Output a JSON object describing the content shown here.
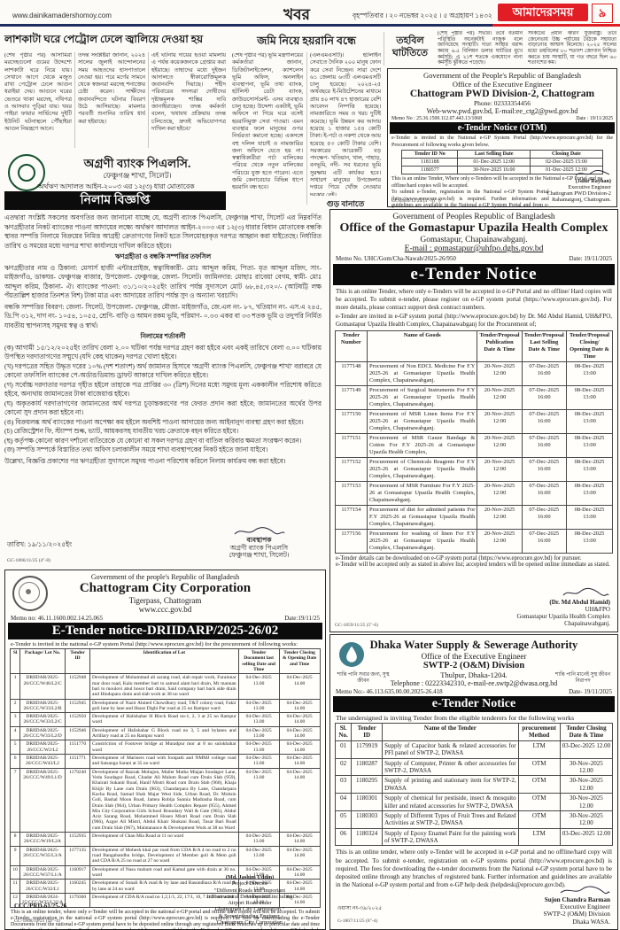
{
  "masthead": {
    "website": "www.dainikamadershomoy.com",
    "section": "খবর",
    "date_line": "বৃহস্পতিবার । ২০ নভেম্বর ২০২৫ । ৫ অগ্রহায়ণ ১৪৩২",
    "paper_name": "আমাদেরসময়",
    "page_number": "৯",
    "brand_red": "#e11d25",
    "rule_navy": "#1c2d5e"
  },
  "article_fire": {
    "headline": "লাশকাটা ঘরে পেট্রোল ঢেলে জ্বালিয়ে দেওয়া হয়",
    "col1": "(শেষ পৃষ্ঠার পর) আসামিরা মরদেহগুলো গুমের উদ্দেশ্যে লাশকাটা ঘরে নিয়ে যায়। সেখানে আগে থেকে মজুত রাখা পেট্রোল ঢেলে আগুন ধরাইয়া দেয়। আগুনে ঘরের ভেতরে থাকা মরদেহ, নথিপত্র ও আসবাব পুড়িয়া যায়। খবর পাইয়া ফায়ার সার্ভিসের দুইটি ইউনিট ঘটনাস্থলে পৌঁছাইয়া আগুন নিয়ন্ত্রণে আনে।",
    "col2": "তদন্ত সংশ্লিষ্টরা জানান, ২০২৪ সালের জুলাই আন্দোলনের সময় আহতদের হাসপাতালে নেওয়া হয়। পরে মর্গের সামনে থেকে স্বজনরা মরদেহ শনাক্তের চেষ্টা করেন। সাক্ষীদের জবানবন্দিতে ঘটনার বিবরণ উঠে আসিয়াছে। মামলার পরবর্তী শুনানির তারিখ ধার্য করা হইয়াছে।",
    "col3": "এই ঘটনায় দায়ের হওয়া মামলায় এ পর্যন্ত কয়েকজনকে গ্রেপ্তার করা হইয়াছে। তাহাদের মধ্যে দুইজন আদালতে স্বীকারোক্তিমূলক জবানবন্দি দিয়াছে। শহীদ পরিবারের সদস্যরা দোষীদের দৃষ্টান্তমূলক শাস্তির দাবি জানাইয়াছেন। তদন্ত কর্মকর্তা বলেন, 'যথাযথ প্রক্রিয়ায় তদন্ত চলিতেছে, দ্রুতই অভিযোগপত্র দাখিল করা হইবে।'"
  },
  "article_land": {
    "headline": "জমি নিয়ে হয়রানি বন্ধে",
    "col1": "(শেষ পৃষ্ঠার পর) ভূমি মন্ত্রণালয়ের কর্মকর্তারা জানান, ডিজিটালাইজেশন, ক্যাশলেস ভূমি অফিস, অনলাইন ব্যবস্থাপনা, ভূমি তথ্য ব্যাংক, হটলিস্ট ডেটা ব্যাংক, ক্রাউডসোর্সমেন্ট- এসব ব্যবস্থাও চালু হচ্ছে। উদ্দেশ্য একটাই, ভূমি অফিসে না গিয়ে ঘরে বসেই হয়রানিমুক্ত সেবা পাওয়া। এমন ব্যবস্থার ফলে মানুষের ওপর নির্ভরতা কমানো হচ্ছে। একসঙ্গে বহু দলিল যাচাই ও নামজারির জন্য অফিসে যেতে হয় না। স্বত্বাধিকারীরা পর্চা মালিকের পরিচয় থেকে নতুন মালিকের পরিচয়ে যুক্ত হতে পারেন। এতে জমি কেনাবেচার বিভিন্ন ধাপে হয়রানি বন্ধ হবে।",
    "col2": "(এলএমএসটি)। হটলাইন সেবাতে দৈনিক ২০০ মানুষ ফোন করে সেবা নিচ্ছেন। সারা দেশে ৬১ জেলায় ৬৩টি এলএমএসটি চালু হয়েছে। ২০২৪-২৫ অর্থবছরে ই-মিউটেশনের মাধ্যমে প্রায় ৪০ লাখ ৪৭ হাজারের বেশি আবেদন নিষ্পত্তি হয়েছে। নামজারিতে সময় ও খরচ দুটিই কমেছে। ভূমি উন্নয়ন কর আদায় হয়েছে ১ হাজার ১৫৪ কোটি টাকা। ই-পর্চা ও নকশা থেকে আয় হয়েছে ৫৩ কোটি টাকার বেশি। সরকারের আরেকটি বড় পদক্ষেপ- খতিয়ান, খাল, পাহাড়, বনভূমি, নদী- সব ধরনের ভূমি সুরক্ষায় এটি কার্যকর হবে। সাধারণ মানুষের উপজেলার দপ্তরে গিয়ে খোঁজ নেওয়ার দরকার নেই।",
    "subhead": "গুড় বানাতে"
  },
  "article_fund": {
    "headline_line1": "তহবিল",
    "headline_line2": "ঘাটতিতে",
    "col1": "(শেষ পৃষ্ঠার পর) সভার। তবে বর্তমান পরিস্থিতি অনেকটাই নাজুক বলে জানিয়েছে সংস্থাটি। দাতা সংস্থার বরাদ্দ কমায় ৬.৫ বিলিয়ন ডলার ঘাটতির মুখে কর্মসূচি; এ ২১শ শতকে একযোগে নানা কর্মসূচি ঝুঁকিতে পড়েছে।",
    "col2": "সংকটের প্রধান কারণ যুক্তরাষ্ট্র। তবে জেনেভায় উচ্চ পর্যায়ের বৈঠকে সহায়তা বাড়ানোর আশ্বাস মিলেছে। ২০২৫ সালের মধ্যে তহবিলের ৮০ শতাংশ জোগান নিশ্চিত করতে চায় সংস্থাটি, যা গত বছরে ছিল ৬০ শতাংশের কম।"
  },
  "agrani": {
    "bank_name": "অগ্রণী ব্যাংক পিএলসি.",
    "branch": "ফেঞ্চুগঞ্জ শাখা, সিলেট।",
    "law_line": "অর্থঋণ আদালত আইন-২০০৩ এর ১২(৩) ধারা মোতাবেক",
    "banner": "নিলাম বিজ্ঞপ্তি",
    "p1": "এতদ্বারা সংশ্লিষ্ট সকলের অবগতির জন্য জানানো যাচ্ছে যে, অগ্রণী ব্যাংক পিএলসি, ফেঞ্চুগঞ্জ শাখা, সিলেট এর নিম্নবর্ণিত ঋণগ্রহীতার নিকট ব্যাংকের পাওনা আদায়ের লক্ষ্যে অর্থঋণ আদালত আইন-২০০৩ এর ১২(৩) ধারার বিধান মোতাবেক বন্ধকি স্থাবর সম্পত্তি নিলামে বিক্রয়ের নিমিত্ত আগ্রহী ক্রেতাগণের নিকট হতে সিলমোহরকৃত দরপত্র আহ্বান করা যাইতেছে। নির্ধারিত তারিখ ও সময়ের মধ্যে দরপত্র শাখা কার্যালয়ে দাখিল করিতে হইবে।",
    "schedule_title": "ঋণগ্রহীতা ও বন্ধকি সম্পত্তির তফসিল",
    "p2": "ঋণগ্রহীতার নাম ও ঠিকানা: মেসার্স হাজী এন্টারপ্রাইজ, স্বত্বাধিকারী- মোঃ আব্দুল করিম, পিতা- মৃত আব্দুল মজিদ, সাং- মাইজগাঁও, ডাকঘর- ফেঞ্চুগঞ্জ বাজার, উপজেলা- ফেঞ্চুগঞ্জ, জেলা- সিলেট। জামিনদার: মোছাঃ রাবেয়া বেগম, স্বামী- মোঃ আব্দুল করিম, ঠিকানা- ঐ। ব্যাংকের পাওনা: ৩১/১০/২০২৫ইং তারিখ পর্যন্ত সুদাসলে মোট ৬৮,৪৫,৩২০/- (আটষট্টি লক্ষ পঁয়তাল্লিশ হাজার তিনশত বিশ) টাকা মাত্র এবং আদায়ের তারিখ পর্যন্ত সুদ ও অন্যান্য খরচাদি।",
    "p3": "বন্ধকি সম্পত্তির বিবরণ: জেলা- সিলেট, উপজেলা- ফেঞ্চুগঞ্জ, মৌজা- মাইজগাঁও, জে.এল নং- ৮৭, খতিয়ান নং- এস.এ ২৪৫, ডি.পি ৩১২, দাগ নং- ১০৫৪, ১০৫৫, শ্রেণি- বাড়ি ও আমন রকম ভূমি, পরিমাণ- ০.৩৩ একর বা ৩৩ শতক ভূমি ও তদুপরি নির্মিত যাবতীয় স্থাপনাসহ সমুদয় স্বত্ব ও স্বার্থ।",
    "terms_title": "নিলামের শর্তাবলী",
    "terms": [
      "(ক) আগামী ১৫/১২/২০২৫ইং তারিখ বেলা ২.০০ ঘটিকা পর্যন্ত দরপত্র গ্রহণ করা হইবে এবং একই তারিখে বেলা ৩.০০ ঘটিকায় উপস্থিত দরদাতাগণের সম্মুখে (যদি কেহ থাকেন) দরপত্র খোলা হইবে।",
      "(খ) দরপত্রের সহিত উদ্ধৃত দরের ১০% (দশ শতাংশ) অর্থ জামানত হিসাবে 'অগ্রণী ব্যাংক পিএলসি, ফেঞ্চুগঞ্জ শাখা' বরাবরে যে কোনো তফসিলি ব্যাংকের পে-অর্ডার/ডিমান্ড ড্রাফট আকারে দাখিল করিতে হইবে।",
      "(গ) সর্বোচ্চ দরদাতার দরপত্র গৃহীত হইলে তাহাকে পত্র প্রাপ্তির ৩০ (ত্রিশ) দিনের মধ্যে সমুদয় মূল্য এককালীন পরিশোধ করিতে হইবে, অন্যথায় জামানতের টাকা বাজেয়াপ্ত হইবে।",
      "(ঘ) অকৃতকার্য দরদাতাগণের জামানতের অর্থ দরপত্র চূড়ান্তকরণের পর ফেরত প্রদান করা হইবে; জামানতের অর্থের উপর কোনো সুদ প্রদান করা হইবে না।",
      "(ঙ) বিক্রয়লব্ধ অর্থ ব্যাংকের পাওনা অপেক্ষা কম হইলে অবশিষ্ট পাওনা আদায়ের জন্য আইনানুগ ব্যবস্থা গ্রহণ করা হইবে।",
      "(চ) রেজিস্ট্রেশন ফি, স্ট্যাম্প শুল্ক, ভ্যাট, আয়করসহ যাবতীয় খরচ ক্রেতাকে বহন করিতে হইবে।",
      "(ছ) কর্তৃপক্ষ কোনো কারণ দর্শানো ব্যতিরেকে যে কোনো বা সকল দরপত্র গ্রহণ বা বাতিল করিবার ক্ষমতা সংরক্ষণ করেন।",
      "(জ) সম্পত্তি সম্পর্কে বিস্তারিত তথ্য অফিস চলাকালীন সময়ে শাখা ব্যবস্থাপকের নিকট হইতে জানা যাইবে।"
    ],
    "p4": "উল্লেখ্য, বিজ্ঞপ্তি প্রকাশের পর ঋণগ্রহীতা সুদাসলে সমুদয় পাওনা পরিশোধ করিলে নিলাম কার্যক্রম বন্ধ করা হইবে।",
    "date_line": "তারিখ: ১৯/১১/২০২৫ইং",
    "sig_role1": "ব্যবস্থাপক",
    "sig_role2": "অগ্রণী ব্যাংক পিএলসি",
    "sig_role3": "ফেঞ্চুগঞ্জ শাখা, সিলেট।",
    "press_code": "GC-1866/11/25 (4\"-8)"
  },
  "pwd": {
    "gov_line": "Government of the People's Republic of Bangladesh",
    "office_line": "Office of the Executive Engineer",
    "division": "Chattogram PWD Division-2, Chattogram",
    "phone": "Phone: 02333354456",
    "web_line": "Web-www.pwd.gov.bd, E-mail:ee_ctg2@pwd.gov.bd",
    "memo": "Memo No : 25.36.1500.112.07.443.13/1068",
    "date": "Date : 19/11/2025",
    "banner": "e-Tender Notice (OTM)",
    "intro": "e-Tender is invited in the National e-GP System Portal (http://www.eprocure.gov.bd) for the Procurement of following works given below.",
    "table": {
      "headers": [
        "Tender ID No",
        "Last Selling Date",
        "Closing Date"
      ],
      "rows": [
        [
          "1181188",
          "01-Dec-2025 12:00",
          "02-Dec-2025 15:00"
        ],
        [
          "1180577",
          "30-Nov-2025 16:00",
          "01-Dec-2025 12:00"
        ]
      ]
    },
    "footer1": "This is an online Tender, Where only e-Tenders will be accepted in the National e-GP Portal and no offline/hard copies will be accepted.",
    "footer2": "To submit e-Tender, registration in the National e-GP System Portal (http://www.eprocure.gov.bd) is required. Further information and guidelines are available in the National e-GP System Portal and from e-GP help desk (helpdesk@eprocure.gov.bd).",
    "sig_name": "(Jahir Rayhan)",
    "sig_line1": "Executive Engineer",
    "sig_line2": "Chattogram PWD Division-2",
    "sig_line3": "Rahamatgonj, Chattogram.",
    "press_code": "GC-1869/11/25 (3\"-3)"
  },
  "health": {
    "gov_line": "Government of Peoples Republic of Bangladesh",
    "office_line": "Office of the Gomastapur Upazila Health Complex",
    "place_line": "Gomastapur, Chapainawabganj.",
    "email_line": "E-mail : gomastapur@uhfpo.dghs.gov.bd",
    "memo": "Memo No. UHC/Gom/Cha-Nawab/2025-26/950",
    "date": "Date: 19/11/2025",
    "banner": "e-Tender Notice",
    "intro1": "This is an online Tender, where only e-Tenders will be accepted in e-GP Portal and no offline/ Hard copies will be accepted. To submit e-tender, please register on e-GP system portal (https://www.eprocure.gov.bd). For more details, please contract support desk contract numbers.",
    "intro2": "e-Tender are invited in e-GP system portal (http://www.eprocure.gov.bd) by Dr. Md Abdul Hamid, UH&FPO, Gomastapur Upazila Health Complex, Chapainawabganj for the Procurement of;",
    "table": {
      "headers": [
        "Tender Number",
        "Name of Goods",
        "Tender/Proposal Publication Date & Time",
        "Tender/Proposal Last Selling Date & Time",
        "Tender/Proposal Closing/ Opening Date & Time"
      ],
      "rows": [
        [
          "1177148",
          "Procurement of Non EDCL Medicine For F.Y 2025-26 at Gomastapur Upazila Health Complex, Chapainawabganj.",
          "20-Nov-2025 12:00",
          "07-Dec-2025 16:00",
          "08-Dec-2025 13:00"
        ],
        [
          "1177149",
          "Procurement of Surgical Instruments For F.Y 2025-26 at Gomastapur Upazila Health Complex, Chapainawabganj.",
          "20-Nov-2025 12:00",
          "07-Dec-2025 16:00",
          "08-Dec-2025 13:00"
        ],
        [
          "1177150",
          "Procurement of MSR Linen Items For F.Y 2025-26 at Gomastapur Upazila Health Complex, Chapainawabganj.",
          "20-Nov-2025 12:00",
          "07-Dec-2025 16:00",
          "08-Dec-2025 13:00"
        ],
        [
          "1177151",
          "Procurement of MSR Gauze Bandage & Cotton For F.Y 2025-26 at Gomastapur Upazila Health Complex,",
          "20-Nov-2025 12:00",
          "07-Dec-2025 16:00",
          "08-Dec-2025 13:00"
        ],
        [
          "1177152",
          "Procurement of Chemicals Reagents For F.Y 2025-26 at Gomastapur Upazila Health Complex, Chapainawabganj.",
          "20-Nov-2025 12:00",
          "07-Dec-2025 16:00",
          "08-Dec-2025 13:00"
        ],
        [
          "1177153",
          "Procurement of MSR Furniture For F.Y 2025-26 at Gomastapur Upazila Health Complex, Chapainawabganj.",
          "20-Nov-2025 12:00",
          "07-Dec-2025 16:00",
          "08-Dec-2025 13:00"
        ],
        [
          "1177154",
          "Procurement of diet for admitted patients For F.Y 2025-26 at Gomastapur Upazila Health Complex, Chapainawabganj.",
          "20-Nov-2025 12:00",
          "07-Dec-2025 16:00",
          "08-Dec-2025 13:00"
        ],
        [
          "1177156",
          "Procurement for washing of linen For F.Y 2025-26 at Gomastapur Upazila Health Complex, Chapainawabganj.",
          "20-Nov-2025 12:00",
          "07-Dec-2025 16:00",
          "08-Dec-2025 13:00"
        ]
      ]
    },
    "footer1": "e-Tender details can be downloaded on e-GP system portal (https://www.eprocure.gov.bd) for pursuer.",
    "footer2": "e-Tender will be accepted only as stated in above list; accepted tenders will be opened online immediate as stated.",
    "sig_name": "(Dr. Md Abdul Hamid)",
    "sig_line1": "UH&FPO",
    "sig_line2": "Gomastapur Upazila Health Complex",
    "sig_line3": "Chapainawabganj.",
    "press_code": "GC-1859/11/25 (5\"-6)"
  },
  "ccc": {
    "gov_line": "Government of the people's Republic of Bangladesh",
    "name": "Chattogram City Corporation",
    "place": "Tigerpass, Chattogram",
    "web": "www.ccc.gov.bd",
    "memo": "Memo no: 46.11.1600.002.14.25.065",
    "date": "Date:19/11/25",
    "banner": "E-Tender notice-DRIIDARP/2025-26/02",
    "intro": "e-Tender is invited in the national e-GP system Portal (http://www.eprocure.gov.bd) for the procurement of following works:",
    "table": {
      "headers": [
        "Sl",
        "Package/ Lot No.",
        "Tender ID",
        "Identification of Lot",
        "Tender Document last selling Date and Time",
        "Tender Closing & Opening Date and Time"
      ],
      "rows": [
        [
          "1",
          "DRIIDAR/2025-26/CCC/W46/L2/C",
          "1152948",
          "Development of Mohammad ali sarang road, slab repair work, Furainnar mar door road, Kalu member bari to samsul alam bari drain, Mr mannan bari to moulovi abul bosor bari drain, Said company bari back side drain and Hindupara drain and slab work at 38 no ward",
          "04-Dec-2025 13.00",
          "04-Dec-2025 14.00"
        ],
        [
          "2",
          "DRIIDAR/2025-26/CCC/W33/L2/B",
          "1152945",
          "Development of Nazir Ahmed Chowdhury road, T&T colony road, Fakir goli lane by lane and Hazar Dighi Par road at 25 no Rampur ward",
          "04-Dec-2025 13.00",
          "04-Dec-2025 14.00"
        ],
        [
          "3",
          "DRIIDAR/2025-26/CCC/W33/L2/C",
          "1152950",
          "Development of Halishahar H Block Road no-1, 2, 3 at 25 no Rampur ward",
          "04-Dec-2025 13.00",
          "04-Dec-2025 14.00"
        ],
        [
          "4",
          "DRIIDAR/2025-26/CCC/W33/L2/D",
          "1152946",
          "Development of Halishahar G Block road no 3, 5 and bylanes and Artillary road at 25 no Rampur ward",
          "04-Dec-2025 13.00",
          "04-Dec-2025 14.00"
        ],
        [
          "5",
          "DRIIDAR/2025-26/CCC/W2/L2",
          "1151770",
          "Constriction of Footover bridge at Muradpur mor at 8 no sulokbahar ward",
          "04-Dec-2025 13.00",
          "04-Dec-2025 14.00"
        ],
        [
          "6",
          "DRIIDAR/2025-26/CCC/W43/L2",
          "1151771",
          "Development of Mariners road with footpath and NMMJ college road and Satsanga Sarani at 35 no ward",
          "04-Dec-2025 13.00",
          "04-Dec-2025 14.00"
        ],
        [
          "7",
          "DRIIDAR/2025-26/CCC/W49/L1/D",
          "1179240",
          "Development of Razzak Mohajon, Mailer Matha Miajan Soudagor Lane, Vedu Soudagor Road, Chadar Ali Malum Road cum Drain Slab (959), Khairati Sukanir Road, Hanif Mistri Road cum Drain Slab (960), Khaja Khijir By Lane cum Drain (963), Chandarpara By Lane, Chandarpara Kacha Road, Samad Shah Majar West Side, Urban Road, Dr. Mohsin Goli, Bashal Moon Road, Jamea Robija Sunnia Madrasha Road, cum Drain Slab (964), Urban Primary Health Complex Repare (955), Ahmed Mia City Corporation Girls School Boundary Wall & Gate (965), Abdul Aziz Sarang Road, Mohammed Hosen Mistri Road cum Drain Slab (966), Azgor Ali Mistri, Abdul Khair Shukani Road, Tusar Bari Road cum Drain Slab (967), Maintanance & Development Work at 38 no Ward",
          "04-Dec-2025 13.00",
          "04-Dec-2025 14.00"
        ],
        [
          "8",
          "DRIIDAR/2025-26/CCC/W19/L2A",
          "1152935",
          "Development of Chan Mia Road at 11 no ward",
          "04-Dec-2025 13.00",
          "04-Dec-2025 14.00"
        ],
        [
          "9",
          "DRIIDAR/2025-26/CCC/W35/L3/A",
          "1177135",
          "Development of Mohesh khal par road from CDA R/A 4 no road to 2 no road Bangabandhu bridge, Development of Member goli & Mem goli and CDA R/A 25 no road at 27 no ward",
          "04-Dec-2025 13.00",
          "04-Dec-2025 14.00"
        ],
        [
          "10",
          "DRIIDAR/2025-26/CCC/W37/L1/A",
          "1160917",
          "Development of Nasu mahum road and Kamal gate with drain at 30 no. ward",
          "04-Dec-2025 13.00",
          "04-Dec-2025 14.00"
        ],
        [
          "11",
          "DRIIDAR/2025-26/CCC/W32/L1",
          "1160245",
          "Development of Sonali R/A road & by lane and Basundhara R/A road & by lane at 24 no ward",
          "04-Dec-2025 13.00",
          "04-Dec-2025 14.00"
        ],
        [
          "12",
          "DRIIDAR/2024-25/CCC/W35/L32/A",
          "1179360",
          "Development of CDA R/A road no 1,2,1/1, 22, 17/1, 10, 7 at 27 no ward",
          "04-Dec-2025 13.00",
          "04-Dec-2025 14.00"
        ]
      ]
    },
    "footer": "This is an online tender, where only e-Tender will be accepted in the national e-GP portal and offline hard copies will not be accepted. To submit e-Tender, registration in the national e-GP system portal (http://www.eprocure.gov.bd) is required. The fees for downloading the e-Tender Documents from the national e-GP system portal have to be deposited online through any registered Bank branches up to particular date and time specified on the tender notice. Further information and guidelines are available in the National e-GP system portal and from e-GP help desk (helpdesk@eprocure.gov.bd)",
    "ref_code": "CCC/PRD-61/25-26",
    "sig_name": "(Md. Jashim Uddin)",
    "sig_lines": [
      "Project Director",
      "“Different Roads and Important",
      "Infrastructural Development including",
      "Airport Road under",
      "Chattogram City Corporation.”",
      "& Superintending Engineer,",
      "Chattogram City Corporation"
    ],
    "press_code": "GC-1868/11/25 (10\"-4)"
  },
  "wasa": {
    "slogan_left": "শান্তি পানি সবার জন্য, সুস্থ জীবন",
    "slogan_right": "শান্তি পানি মানেই সুস্থ জীবন নিরাপদ",
    "name": "Dhaka Water Supply & Sewerage Authority",
    "office_line": "Office of the Executive Engineer",
    "division": "SWTP-2 (O&M) Division",
    "place": "Thulpur, Dhaka-1204.",
    "phone_line": "Telephone : 02223342310, e-mail-ee.swtp2@dwasa.org.bd",
    "memo": "Memo No:- 46.113.635.00.00.2025-26.418",
    "date": "Date- 19/11/2025",
    "banner": "e-Tender Notice",
    "intro": "The undersigned is inviting Tender from the eligible tenderers for the following works",
    "table": {
      "headers": [
        "Sl. No.",
        "Tender ID",
        "Name of the Tender",
        "procurement Method",
        "Tender Closing Date & Time"
      ],
      "rows": [
        [
          "01",
          "1179919",
          "Supply of Capacitor bank & related accessories for PFI panel of SWTP-2, DWASA",
          "LTM",
          "03-Dec-2025 12.00"
        ],
        [
          "02",
          "1180287",
          "Supply of Computer, Printer & other accessories for SWTP-2, DWASA",
          "OTM",
          "30-Nov-2025 12.00"
        ],
        [
          "03",
          "1180295",
          "Supply of printing and stationary item for SWTP-2, DWASA",
          "OTM",
          "30-Nov-2025 12.00"
        ],
        [
          "04",
          "1180301",
          "Supply of chemical for pestiside, insect & mosquito killer and related accessories for SWTP-2, DWASA",
          "OTM",
          "30-Nov-2025 12.00"
        ],
        [
          "05",
          "1180303",
          "Supply of Different Types of Fruit Trees and Related Activities at SWTP-2, DWASA",
          "OTM",
          "30-Nov-2025 12.00"
        ],
        [
          "06",
          "1180324",
          "Supply of Epoxy Enamel Paint for the painting work of SWTP-2, DWASA",
          "LTM",
          "03-Dec-2025 12.00"
        ]
      ]
    },
    "footer": "This is an online tender, where only e-Tender will be accepted in e-GP portal and no offline/hard copy will be accepted. To submit e-tender, registration on e-GP systems portal (http://www.eprocure.gov.bd) is required. The fees for downloading the e-tender documents from the National e-GP system portal have to be deposited online through any branches of registered bank. Further information and guidelines are available in the National e-GP system portal and from e-GP help desk (helpdesk@eprocure.gov.bd).",
    "sig_name": "Sujon Chandra Barman",
    "sig_line1": "Executive Engineer",
    "sig_line2": "SWTP-2 (O&M) Division",
    "sig_line3": "Dhaka WASA.",
    "ref_code": "ওয়াসা নং-৩৯/২০২৫",
    "press_code": "G-1867/11/25 (8\"-4)"
  }
}
